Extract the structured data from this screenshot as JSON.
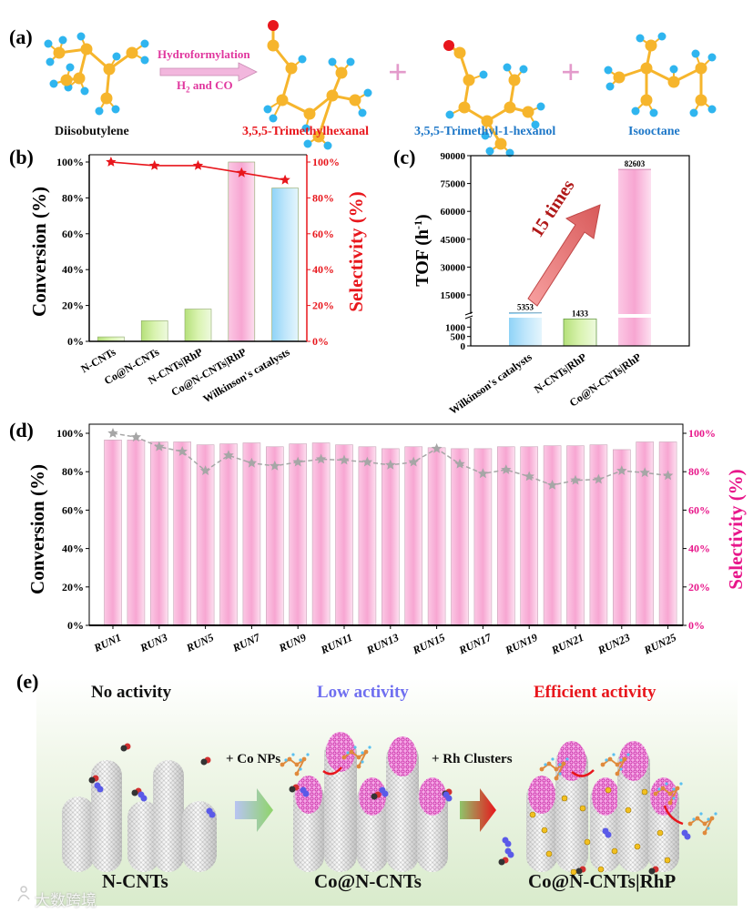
{
  "figure": {
    "panel_labels": [
      "(a)",
      "(b)",
      "(c)",
      "(d)",
      "(e)"
    ],
    "panel_a": {
      "reactant": "Diisobutylene",
      "reaction_top": "Hydroformylation",
      "reaction_bottom_h": "H",
      "reaction_bottom_sub": "2",
      "reaction_bottom_rest": " and CO",
      "plus": "+",
      "products": [
        "3,5,5-Trimethylhexanal",
        "3,5,5-Trimethyl-1-hexanol",
        "Isooctane"
      ]
    },
    "panel_e": {
      "stage_titles": [
        "No activity",
        "Low activity",
        "Efficient activity"
      ],
      "steps": [
        "+ Co NPs",
        "+ Rh Clusters"
      ],
      "catalysts": [
        "N-CNTs",
        "Co@N-CNTs",
        "Co@N-CNTs|RhP"
      ],
      "watermark": "大数跨境"
    }
  },
  "colors": {
    "pink": "#f7a6d2",
    "green": "#c3e88a",
    "blue": "#a8dcf7",
    "red": "#e8161c",
    "magenta": "#e8168a",
    "gray_line": "#a6a6a6",
    "carbon": "#f6b52c",
    "hydrogen": "#2fb5ef",
    "oxygen": "#e8161c"
  },
  "chart_data": [
    {
      "id": "b",
      "type": "bar",
      "categories": [
        "N-CNTs",
        "Co@N-CNTs",
        "N-CNTs|RhP",
        "Co@N-CNTs|RhP",
        "Wilkinson's catalysts"
      ],
      "series": [
        {
          "name": "Conversion",
          "axis": "left",
          "type": "bar",
          "values": [
            2.5,
            11.5,
            18,
            100,
            85.5
          ],
          "colors": [
            "#a9d86e",
            "#c3e88a",
            "#c3e88a",
            "#f7a6d2",
            "#a8dcf7"
          ]
        },
        {
          "name": "Selectivity",
          "axis": "right",
          "type": "line",
          "marker": "star",
          "color": "#e8161c",
          "values": [
            100,
            98,
            98,
            94,
            90
          ]
        }
      ],
      "ylabel": "Conversion (%)",
      "y2label": "Selectivity (%)",
      "ylim": [
        0,
        100
      ],
      "y2lim": [
        0,
        100
      ],
      "yticks": [
        0,
        20,
        40,
        60,
        80,
        100
      ],
      "ytick_labels": [
        "0%",
        "20%",
        "40%",
        "60%",
        "80%",
        "100%"
      ],
      "y2tick_labels": [
        "0%",
        "20%",
        "40%",
        "60%",
        "80%",
        "100%"
      ]
    },
    {
      "id": "c",
      "type": "bar",
      "categories": [
        "Wilkinson's catalysts",
        "N-CNTs|RhP",
        "Co@N-CNTs|RhP"
      ],
      "values": [
        5353,
        1433,
        82603
      ],
      "data_labels": [
        "5353",
        "1433",
        "82603"
      ],
      "colors": [
        "#a8dcf7",
        "#b5ec8a",
        "#f7a6d2"
      ],
      "ylabel": "TOF (h",
      "ylabel_sup": "-1",
      "ylabel_end": ")",
      "axis_break": true,
      "ylim_lower": [
        0,
        1500
      ],
      "ylim_upper": [
        3700,
        90000
      ],
      "yticks_lower": [
        0,
        500,
        1000
      ],
      "ytick_labels_lower": [
        "0",
        "500",
        "1000"
      ],
      "yticks_upper": [
        15000,
        30000,
        45000,
        60000,
        75000,
        90000
      ],
      "ytick_labels_upper": [
        "15000",
        "30000",
        "45000",
        "60000",
        "75000",
        "90000"
      ],
      "annotation": "15 times"
    },
    {
      "id": "d",
      "type": "bar",
      "x": [
        1,
        2,
        3,
        4,
        5,
        6,
        7,
        8,
        9,
        10,
        11,
        12,
        13,
        14,
        15,
        16,
        17,
        18,
        19,
        20,
        21,
        22,
        23,
        24,
        25
      ],
      "xtick_labels": [
        "RUN1",
        "RUN3",
        "RUN5",
        "RUN7",
        "RUN9",
        "RUN11",
        "RUN13",
        "RUN15",
        "RUN17",
        "RUN19",
        "RUN21",
        "RUN23",
        "RUN25"
      ],
      "series": [
        {
          "name": "Conversion",
          "axis": "left",
          "type": "bar",
          "color": "#f7a6d2",
          "values": [
            96.5,
            96.5,
            95.5,
            95.5,
            94,
            94.5,
            95,
            93,
            94.5,
            95,
            94,
            93,
            92,
            93,
            92.5,
            92,
            92,
            93,
            93,
            93.5,
            93.5,
            94,
            91.5,
            95.5,
            95.5
          ]
        },
        {
          "name": "Selectivity",
          "axis": "right",
          "type": "line",
          "marker": "star",
          "color": "#a6a6a6",
          "values": [
            100,
            98,
            93,
            90.5,
            80.5,
            88.5,
            84.5,
            83,
            85,
            86.5,
            86,
            85,
            83.5,
            85,
            92,
            84,
            79,
            81,
            77.5,
            73,
            75.5,
            76,
            80.5,
            79.5,
            78
          ]
        }
      ],
      "ylabel": "Conversion (%)",
      "y2label": "Selectivity (%)",
      "ylim": [
        0,
        100
      ],
      "y2lim": [
        0,
        100
      ],
      "yticks": [
        0,
        20,
        40,
        60,
        80,
        100
      ],
      "ytick_labels": [
        "0%",
        "20%",
        "40%",
        "60%",
        "80%",
        "100%"
      ],
      "y2tick_labels": [
        "0%",
        "20%",
        "40%",
        "60%",
        "80%",
        "100%"
      ]
    }
  ]
}
